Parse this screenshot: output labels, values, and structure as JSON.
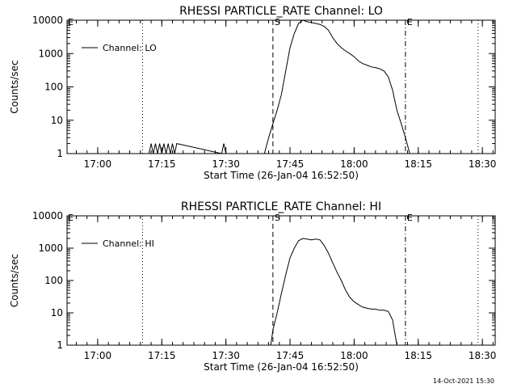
{
  "chart_data": [
    {
      "type": "line",
      "title": "RHESSI PARTICLE_RATE Channel: LO",
      "xlabel": "Start Time (26-Jan-04 16:52:50)",
      "ylabel": "Counts/sec",
      "yscale": "log",
      "ylim": [
        1,
        10000
      ],
      "yticks": [
        "1",
        "10",
        "100",
        "1000",
        "10000"
      ],
      "xlim": [
        "16:52:50",
        "18:33:00"
      ],
      "xticks": [
        "17:00",
        "17:15",
        "17:30",
        "17:45",
        "18:00",
        "18:15",
        "18:30"
      ],
      "legend": {
        "position": "top-left",
        "entries": [
          "Channel: LO"
        ]
      },
      "markers": [
        {
          "time": "17:10:30",
          "style": "dotted",
          "label": ""
        },
        {
          "time": "17:41:00",
          "style": "dashed",
          "label": "S"
        },
        {
          "time": "18:12:00",
          "style": "dashdot",
          "label": "E"
        },
        {
          "time": "18:29:00",
          "style": "dotted",
          "label": ""
        }
      ],
      "edge_labels": [
        "E"
      ],
      "series": [
        {
          "name": "Channel: LO",
          "x": [
            "17:12:00",
            "17:12:30",
            "17:13:00",
            "17:13:30",
            "17:14:00",
            "17:14:30",
            "17:15:00",
            "17:15:30",
            "17:16:00",
            "17:16:30",
            "17:17:00",
            "17:17:30",
            "17:18:00",
            "17:18:30",
            "17:29:00",
            "17:29:30",
            "17:30:00",
            "17:39:00",
            "17:40:00",
            "17:41:00",
            "17:42:00",
            "17:43:00",
            "17:44:00",
            "17:45:00",
            "17:46:00",
            "17:47:00",
            "17:48:00",
            "17:49:00",
            "17:50:00",
            "17:51:00",
            "17:52:00",
            "17:53:00",
            "17:54:00",
            "17:55:00",
            "17:56:00",
            "17:57:00",
            "17:58:00",
            "17:59:00",
            "18:00:00",
            "18:01:00",
            "18:02:00",
            "18:03:00",
            "18:04:00",
            "18:05:00",
            "18:06:00",
            "18:07:00",
            "18:08:00",
            "18:09:00",
            "18:10:00",
            "18:11:00",
            "18:12:00",
            "18:13:00"
          ],
          "y": [
            1,
            2,
            1,
            2,
            1,
            2,
            1,
            2,
            1,
            2,
            1,
            2,
            1,
            2,
            1,
            2,
            1,
            1,
            3,
            8,
            20,
            60,
            300,
            1500,
            4000,
            8000,
            10000,
            9000,
            8500,
            8000,
            7500,
            6500,
            5000,
            3000,
            2000,
            1500,
            1200,
            1000,
            800,
            600,
            500,
            450,
            400,
            380,
            350,
            300,
            200,
            80,
            20,
            8,
            3,
            1
          ]
        }
      ]
    },
    {
      "type": "line",
      "title": "RHESSI PARTICLE_RATE Channel: HI",
      "xlabel": "Start Time (26-Jan-04 16:52:50)",
      "ylabel": "Counts/sec",
      "yscale": "log",
      "ylim": [
        1,
        10000
      ],
      "yticks": [
        "1",
        "10",
        "100",
        "1000",
        "10000"
      ],
      "xlim": [
        "16:52:50",
        "18:33:00"
      ],
      "xticks": [
        "17:00",
        "17:15",
        "17:30",
        "17:45",
        "18:00",
        "18:15",
        "18:30"
      ],
      "legend": {
        "position": "top-left",
        "entries": [
          "Channel: HI"
        ]
      },
      "markers": [
        {
          "time": "17:10:30",
          "style": "dotted",
          "label": ""
        },
        {
          "time": "17:41:00",
          "style": "dashed",
          "label": "S"
        },
        {
          "time": "18:12:00",
          "style": "dashdot",
          "label": "E"
        },
        {
          "time": "18:29:00",
          "style": "dotted",
          "label": ""
        }
      ],
      "edge_labels": [
        "E"
      ],
      "series": [
        {
          "name": "Channel: HI",
          "x": [
            "17:40:30",
            "17:41:00",
            "17:42:00",
            "17:43:00",
            "17:44:00",
            "17:45:00",
            "17:46:00",
            "17:47:00",
            "17:48:00",
            "17:49:00",
            "17:50:00",
            "17:51:00",
            "17:52:00",
            "17:53:00",
            "17:54:00",
            "17:55:00",
            "17:56:00",
            "17:57:00",
            "17:58:00",
            "17:59:00",
            "18:00:00",
            "18:01:00",
            "18:02:00",
            "18:03:00",
            "18:04:00",
            "18:05:00",
            "18:06:00",
            "18:07:00",
            "18:08:00",
            "18:09:00",
            "18:10:00"
          ],
          "y": [
            1,
            3,
            10,
            40,
            150,
            500,
            1000,
            1700,
            2000,
            1900,
            1800,
            1900,
            1800,
            1200,
            700,
            350,
            180,
            100,
            50,
            30,
            22,
            18,
            15,
            14,
            13,
            13,
            12,
            12,
            11,
            6,
            1
          ]
        }
      ]
    }
  ],
  "footer": {
    "timestamp": "14-Oct-2021 15:30"
  }
}
